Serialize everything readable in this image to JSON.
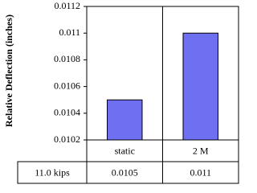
{
  "chart_data": {
    "type": "bar",
    "y_label": "Relative Deflection (inches)",
    "categories": [
      "static",
      "2 M"
    ],
    "series": [
      {
        "name": "11.0 kips",
        "color": "#6f6ff2",
        "values": [
          0.0105,
          0.011
        ]
      }
    ],
    "ylim": [
      0.0102,
      0.0112
    ],
    "yticks": [
      0.0102,
      0.0104,
      0.0106,
      0.0108,
      0.011,
      0.0112
    ],
    "grid": false
  }
}
